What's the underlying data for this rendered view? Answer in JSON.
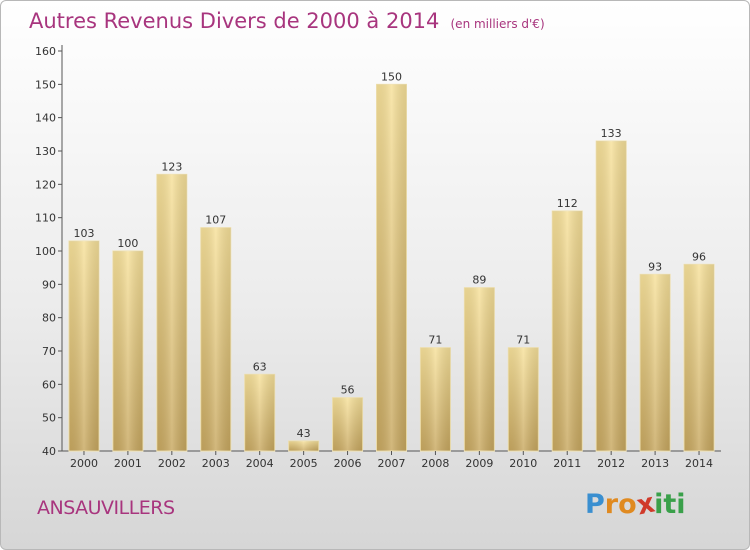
{
  "chart_data": {
    "type": "bar",
    "title": "Autres Revenus Divers de 2000 à 2014",
    "subtitle": "(en milliers d'€)",
    "categories": [
      "2000",
      "2001",
      "2002",
      "2003",
      "2004",
      "2005",
      "2006",
      "2007",
      "2008",
      "2009",
      "2010",
      "2011",
      "2012",
      "2013",
      "2014"
    ],
    "values": [
      103,
      100,
      123,
      107,
      63,
      43,
      56,
      150,
      71,
      89,
      71,
      112,
      133,
      93,
      96
    ],
    "ylim": [
      40,
      160
    ],
    "yticks": [
      40,
      50,
      60,
      70,
      80,
      90,
      100,
      110,
      120,
      130,
      140,
      150,
      160
    ],
    "grid": false,
    "bar_color": "#e8cc80"
  },
  "footer": {
    "commune": "ANSAUVILLERS",
    "logo_letters": [
      "P",
      "r",
      "o",
      "x",
      "i",
      "t",
      "i"
    ],
    "logo_colors": [
      "#3a8fd0",
      "#e08a20",
      "#e08a20",
      "#d03a2a",
      "#3aa04a",
      "#3aa04a",
      "#3aa04a"
    ]
  },
  "colors": {
    "title": "#a8357e"
  }
}
